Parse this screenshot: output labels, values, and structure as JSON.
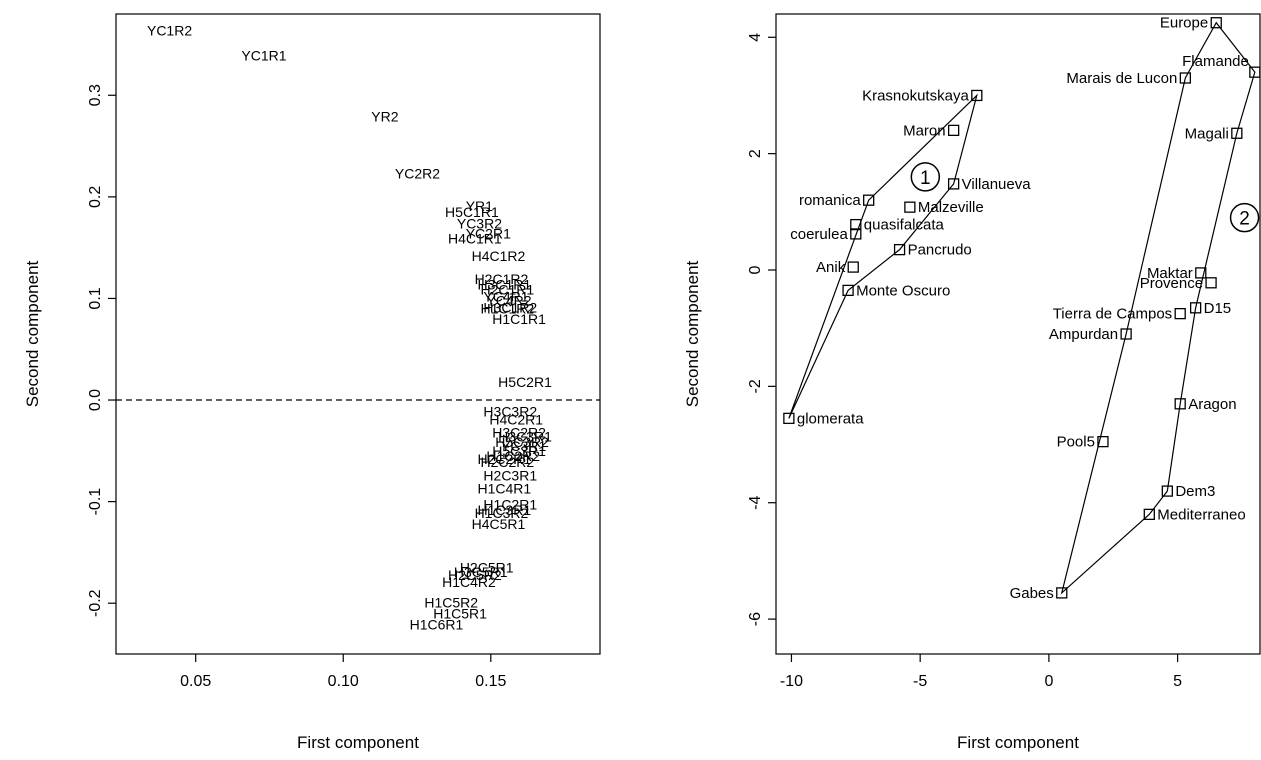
{
  "chart_data": [
    {
      "type": "scatter",
      "title": "",
      "xlabel": "First component",
      "ylabel": "Second component",
      "xlim": [
        0.023,
        0.187
      ],
      "ylim": [
        -0.25,
        0.38
      ],
      "xticks": [
        0.05,
        0.1,
        0.15
      ],
      "xtick_labels": [
        "0.05",
        "0.10",
        "0.15"
      ],
      "yticks": [
        -0.2,
        -0.1,
        0.0,
        0.1,
        0.2,
        0.3
      ],
      "ytick_labels": [
        "-0.2",
        "-0.1",
        "0.0",
        "0.1",
        "0.2",
        "0.3"
      ],
      "reference_line": {
        "y": 0.0,
        "style": "dashed"
      },
      "markers": "text-only",
      "grid": false,
      "points": [
        {
          "label": "YC1R2",
          "x": 0.0335,
          "y": 0.359
        },
        {
          "label": "YC1R1",
          "x": 0.0655,
          "y": 0.334
        },
        {
          "label": "YR2",
          "x": 0.1095,
          "y": 0.274
        },
        {
          "label": "YC2R2",
          "x": 0.1175,
          "y": 0.218
        },
        {
          "label": "YR1",
          "x": 0.1415,
          "y": 0.186
        },
        {
          "label": "H5C1R1",
          "x": 0.1345,
          "y": 0.18
        },
        {
          "label": "YC3R2",
          "x": 0.1385,
          "y": 0.169
        },
        {
          "label": "YC2R1",
          "x": 0.1415,
          "y": 0.159
        },
        {
          "label": "H4C1R1",
          "x": 0.1355,
          "y": 0.154
        },
        {
          "label": "H4C1R2",
          "x": 0.1435,
          "y": 0.137
        },
        {
          "label": "H2C1R2",
          "x": 0.1445,
          "y": 0.114
        },
        {
          "label": "H3C1R1",
          "x": 0.1455,
          "y": 0.109
        },
        {
          "label": "H2C1R1",
          "x": 0.1465,
          "y": 0.104
        },
        {
          "label": "YC4R1",
          "x": 0.1475,
          "y": 0.097
        },
        {
          "label": "YC4R2",
          "x": 0.1485,
          "y": 0.093
        },
        {
          "label": "H3C1R2",
          "x": 0.1475,
          "y": 0.086
        },
        {
          "label": "H1C1R2",
          "x": 0.1465,
          "y": 0.085
        },
        {
          "label": "H1C1R1",
          "x": 0.1505,
          "y": 0.075
        },
        {
          "label": "H5C2R1",
          "x": 0.1525,
          "y": 0.013
        },
        {
          "label": "H3C3R2",
          "x": 0.1475,
          "y": -0.016
        },
        {
          "label": "H4C2R1",
          "x": 0.1495,
          "y": -0.024
        },
        {
          "label": "H3C2R2",
          "x": 0.1505,
          "y": -0.037
        },
        {
          "label": "H3C3R1",
          "x": 0.1525,
          "y": -0.041
        },
        {
          "label": "H5C3R2",
          "x": 0.1515,
          "y": -0.046
        },
        {
          "label": "YC3R1",
          "x": 0.1535,
          "y": -0.05
        },
        {
          "label": "H5C3R1",
          "x": 0.1505,
          "y": -0.055
        },
        {
          "label": "H1C2R2",
          "x": 0.1485,
          "y": -0.06
        },
        {
          "label": "H2C2R1",
          "x": 0.1455,
          "y": -0.063
        },
        {
          "label": "H2C2R2",
          "x": 0.1465,
          "y": -0.066
        },
        {
          "label": "H2C3R1",
          "x": 0.1475,
          "y": -0.079
        },
        {
          "label": "H1C4R1",
          "x": 0.1455,
          "y": -0.092
        },
        {
          "label": "H1C2R1",
          "x": 0.1475,
          "y": -0.108
        },
        {
          "label": "H1C3R1",
          "x": 0.1455,
          "y": -0.113
        },
        {
          "label": "H1C3R2",
          "x": 0.1445,
          "y": -0.116
        },
        {
          "label": "H4C5R1",
          "x": 0.1435,
          "y": -0.127
        },
        {
          "label": "H2C5R1",
          "x": 0.1395,
          "y": -0.17
        },
        {
          "label": "H3C5R1",
          "x": 0.1375,
          "y": -0.174
        },
        {
          "label": "H2C5R2",
          "x": 0.1355,
          "y": -0.177
        },
        {
          "label": "H1C4R2",
          "x": 0.1335,
          "y": -0.184
        },
        {
          "label": "H1C5R2",
          "x": 0.1275,
          "y": -0.204
        },
        {
          "label": "H1C5R1",
          "x": 0.1305,
          "y": -0.215
        },
        {
          "label": "H1C6R1",
          "x": 0.1225,
          "y": -0.226
        }
      ]
    },
    {
      "type": "scatter",
      "title": "",
      "xlabel": "First component",
      "ylabel": "Second component",
      "xlim": [
        -10.6,
        8.2
      ],
      "ylim": [
        -6.6,
        4.4
      ],
      "xticks": [
        -10,
        -5,
        0,
        5
      ],
      "xtick_labels": [
        "-10",
        "-5",
        "0",
        "5"
      ],
      "yticks": [
        -6,
        -4,
        -2,
        0,
        2,
        4
      ],
      "ytick_labels": [
        "-6",
        "-4",
        "-2",
        "0",
        "2",
        "4"
      ],
      "markers": "open-square",
      "grid": false,
      "groups": [
        {
          "label": "1",
          "label_pos": {
            "x": -4.8,
            "y": 1.6
          },
          "hull": [
            "glomerata",
            "romanica",
            "Krasnokutskaya",
            "Villanueva",
            "Pancrudo",
            "Monte Oscuro"
          ]
        },
        {
          "label": "2",
          "label_pos": {
            "x": 7.6,
            "y": 0.9
          },
          "hull": [
            "Gabes",
            "Ampurdan",
            "Marais de Lucon",
            "Europe",
            "Flamande",
            "Magali",
            "D15",
            "Aragon",
            "Dem3",
            "Mediterraneo"
          ]
        }
      ],
      "points": [
        {
          "label": "Europe",
          "x": 6.5,
          "y": 4.25,
          "label_side": "left"
        },
        {
          "label": "Flamande",
          "x": 8.0,
          "y": 3.4,
          "label_side": "above-left"
        },
        {
          "label": "Marais de Lucon",
          "x": 5.3,
          "y": 3.3,
          "label_side": "left"
        },
        {
          "label": "Magali",
          "x": 7.3,
          "y": 2.35,
          "label_side": "left"
        },
        {
          "label": "Krasnokutskaya",
          "x": -2.8,
          "y": 3.0,
          "label_side": "left"
        },
        {
          "label": "Maron",
          "x": -3.7,
          "y": 2.4,
          "label_side": "left"
        },
        {
          "label": "Villanueva",
          "x": -3.7,
          "y": 1.48,
          "label_side": "right"
        },
        {
          "label": "romanica",
          "x": -7.0,
          "y": 1.2,
          "label_side": "left"
        },
        {
          "label": "Malzeville",
          "x": -5.4,
          "y": 1.08,
          "label_side": "right"
        },
        {
          "label": "quasifalcata",
          "x": -7.5,
          "y": 0.78,
          "label_side": "right"
        },
        {
          "label": "coerulea",
          "x": -7.5,
          "y": 0.62,
          "label_side": "left"
        },
        {
          "label": "Pancrudo",
          "x": -5.8,
          "y": 0.35,
          "label_side": "right"
        },
        {
          "label": "Anik",
          "x": -7.6,
          "y": 0.05,
          "label_side": "left"
        },
        {
          "label": "Monte Oscuro",
          "x": -7.8,
          "y": -0.35,
          "label_side": "right"
        },
        {
          "label": "Maktar",
          "x": 5.9,
          "y": -0.05,
          "label_side": "left"
        },
        {
          "label": "Provence",
          "x": 6.3,
          "y": -0.22,
          "label_side": "left"
        },
        {
          "label": "Tierra de Campos",
          "x": 5.1,
          "y": -0.75,
          "label_side": "left"
        },
        {
          "label": "D15",
          "x": 5.7,
          "y": -0.65,
          "label_side": "right"
        },
        {
          "label": "Ampurdan",
          "x": 3.0,
          "y": -1.1,
          "label_side": "left"
        },
        {
          "label": "glomerata",
          "x": -10.1,
          "y": -2.55,
          "label_side": "right"
        },
        {
          "label": "Aragon",
          "x": 5.1,
          "y": -2.3,
          "label_side": "right"
        },
        {
          "label": "Pool5",
          "x": 2.1,
          "y": -2.95,
          "label_side": "left"
        },
        {
          "label": "Dem3",
          "x": 4.6,
          "y": -3.8,
          "label_side": "right"
        },
        {
          "label": "Mediterraneo",
          "x": 3.9,
          "y": -4.2,
          "label_side": "right"
        },
        {
          "label": "Gabes",
          "x": 0.5,
          "y": -5.55,
          "label_side": "left"
        }
      ]
    }
  ]
}
